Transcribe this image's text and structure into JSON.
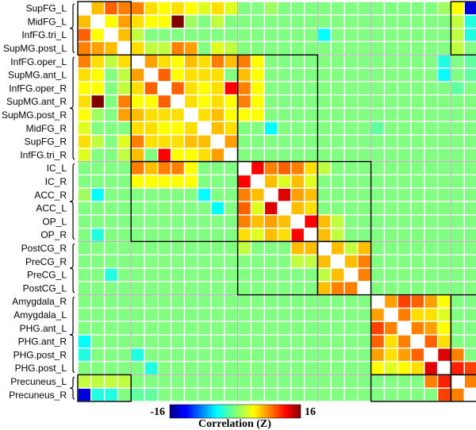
{
  "chart_data": {
    "type": "heatmap",
    "row_labels": [
      "SupFG_L",
      "MidFG_L",
      "InfFG.tri_L",
      "SupMG.post_L",
      "InfFG.oper_L",
      "SupMG.ant_L",
      "InfFG.oper_R",
      "SupMG.ant_R",
      "SupMG.post_R",
      "MidFG_R",
      "SupFG_R",
      "InfFG.tri_R",
      "IC_L",
      "IC_R",
      "ACC_R",
      "ACC_L",
      "OP_L",
      "OP_R",
      "PostCG_R",
      "PreCG_R",
      "PreCG_L",
      "PostCG_L",
      "Amygdala_R",
      "Amygdala_L",
      "PHG.ant_L",
      "PHG.ant_R",
      "PHG.post_R",
      "PHG.post_L",
      "Precuneus_L",
      "Precuneus_R"
    ],
    "colorbar": {
      "min_label": "-16",
      "max_label": "16",
      "label": "Correlation (Z)",
      "range": [
        -16,
        16
      ]
    },
    "modules": [
      {
        "start": 0,
        "end": 3
      },
      {
        "start": 4,
        "end": 11
      },
      {
        "start": 12,
        "end": 17
      },
      {
        "start": 18,
        "end": 21
      },
      {
        "start": 22,
        "end": 27
      },
      {
        "start": 28,
        "end": 29
      }
    ],
    "off_diagonal_boxes": [
      {
        "rows": [
          0,
          3
        ],
        "cols": [
          28,
          29
        ]
      },
      {
        "rows": [
          28,
          29
        ],
        "cols": [
          0,
          3
        ]
      },
      {
        "rows": [
          4,
          11
        ],
        "cols": [
          12,
          17
        ]
      },
      {
        "rows": [
          12,
          17
        ],
        "cols": [
          4,
          11
        ]
      },
      {
        "rows": [
          12,
          17
        ],
        "cols": [
          18,
          21
        ]
      },
      {
        "rows": [
          18,
          21
        ],
        "cols": [
          12,
          17
        ]
      },
      {
        "rows": [
          22,
          27
        ],
        "cols": [
          28,
          29
        ]
      },
      {
        "rows": [
          28,
          29
        ],
        "cols": [
          22,
          27
        ]
      }
    ],
    "values": [
      [
        null,
        6,
        9,
        8,
        8,
        5,
        4,
        5,
        4,
        3,
        5,
        3,
        0,
        0,
        1,
        0,
        0,
        0,
        0,
        0,
        0,
        0,
        0,
        0,
        0,
        0,
        0,
        1,
        4,
        -13
      ],
      [
        6,
        null,
        4,
        7,
        5,
        4,
        4,
        16,
        1,
        0,
        2,
        0,
        0,
        0,
        0,
        0,
        0,
        0,
        0,
        0,
        0,
        0,
        0,
        0,
        0,
        0,
        0,
        0,
        2,
        -3
      ],
      [
        9,
        4,
        null,
        6,
        2,
        0,
        0,
        0,
        0,
        0,
        0,
        0,
        0,
        0,
        0,
        0,
        0,
        0,
        -4,
        0,
        0,
        0,
        0,
        0,
        0,
        0,
        0,
        0,
        2,
        -3
      ],
      [
        8,
        7,
        6,
        null,
        5,
        2,
        2,
        8,
        7,
        0,
        3,
        2,
        0,
        0,
        0,
        0,
        0,
        0,
        0,
        0,
        0,
        0,
        0,
        0,
        0,
        0,
        0,
        0,
        2,
        0
      ],
      [
        8,
        5,
        2,
        5,
        null,
        7,
        5,
        4,
        6,
        5,
        8,
        6,
        8,
        4,
        0,
        0,
        0,
        0,
        0,
        0,
        0,
        0,
        0,
        0,
        0,
        0,
        0,
        -3,
        0,
        -1
      ],
      [
        5,
        4,
        0,
        2,
        7,
        null,
        9,
        4,
        5,
        5,
        5,
        0,
        6,
        4,
        0,
        0,
        0,
        0,
        0,
        0,
        0,
        0,
        0,
        0,
        0,
        0,
        0,
        -4,
        0,
        -1
      ],
      [
        4,
        4,
        0,
        2,
        5,
        9,
        null,
        9,
        5,
        4,
        5,
        12,
        8,
        4,
        0,
        0,
        0,
        0,
        0,
        0,
        0,
        0,
        0,
        0,
        0,
        0,
        0,
        0,
        -1,
        0
      ],
      [
        5,
        16,
        0,
        8,
        4,
        4,
        9,
        null,
        5,
        4,
        5,
        4,
        8,
        4,
        0,
        0,
        0,
        0,
        0,
        0,
        0,
        0,
        0,
        0,
        0,
        0,
        0,
        0,
        0,
        0
      ],
      [
        4,
        1,
        0,
        7,
        6,
        5,
        5,
        5,
        null,
        5,
        6,
        4,
        4,
        4,
        0,
        0,
        0,
        0,
        0,
        0,
        0,
        0,
        0,
        0,
        0,
        0,
        0,
        0,
        0,
        0
      ],
      [
        3,
        0,
        0,
        0,
        5,
        5,
        4,
        4,
        5,
        null,
        6,
        5,
        0,
        0,
        -4,
        0,
        0,
        0,
        0,
        0,
        0,
        0,
        -1,
        0,
        0,
        0,
        0,
        0,
        0,
        0
      ],
      [
        5,
        2,
        0,
        3,
        8,
        5,
        5,
        5,
        6,
        6,
        null,
        7,
        0,
        0,
        0,
        0,
        0,
        0,
        0,
        0,
        0,
        0,
        0,
        0,
        0,
        0,
        0,
        0,
        0,
        0
      ],
      [
        3,
        0,
        0,
        2,
        6,
        0,
        12,
        4,
        4,
        5,
        7,
        null,
        0,
        0,
        0,
        0,
        0,
        0,
        0,
        0,
        0,
        0,
        0,
        0,
        0,
        0,
        0,
        0,
        0,
        0
      ],
      [
        0,
        0,
        0,
        0,
        8,
        6,
        8,
        8,
        4,
        0,
        0,
        0,
        null,
        12,
        8,
        9,
        8,
        5,
        2,
        0,
        0,
        0,
        0,
        0,
        0,
        0,
        0,
        0,
        0,
        0
      ],
      [
        0,
        0,
        0,
        0,
        4,
        4,
        4,
        4,
        4,
        0,
        0,
        0,
        12,
        null,
        6,
        3,
        6,
        3,
        0,
        0,
        0,
        0,
        0,
        0,
        0,
        0,
        0,
        0,
        0,
        0
      ],
      [
        1,
        -4,
        0,
        0,
        0,
        0,
        0,
        0,
        0,
        -4,
        0,
        0,
        8,
        6,
        null,
        13,
        7,
        6,
        0,
        0,
        0,
        0,
        0,
        0,
        0,
        0,
        0,
        0,
        0,
        0
      ],
      [
        0,
        0,
        0,
        0,
        0,
        0,
        0,
        0,
        0,
        0,
        -4,
        0,
        9,
        3,
        13,
        null,
        6,
        5,
        0,
        0,
        0,
        0,
        0,
        0,
        0,
        0,
        0,
        0,
        0,
        0
      ],
      [
        0,
        0,
        0,
        0,
        0,
        0,
        0,
        0,
        0,
        0,
        0,
        0,
        8,
        6,
        7,
        6,
        null,
        12,
        6,
        2,
        0,
        0,
        0,
        0,
        0,
        0,
        0,
        0,
        0,
        0
      ],
      [
        0,
        -3,
        0,
        0,
        0,
        0,
        0,
        0,
        0,
        0,
        0,
        0,
        5,
        3,
        6,
        5,
        12,
        null,
        6,
        2,
        0,
        0,
        0,
        0,
        0,
        0,
        0,
        0,
        0,
        0
      ],
      [
        0,
        0,
        0,
        0,
        0,
        0,
        0,
        0,
        0,
        0,
        0,
        0,
        2,
        0,
        0,
        0,
        6,
        6,
        null,
        6,
        2,
        6,
        0,
        0,
        0,
        0,
        0,
        0,
        0,
        0
      ],
      [
        0,
        0,
        0,
        0,
        0,
        0,
        0,
        0,
        0,
        0,
        0,
        0,
        0,
        0,
        0,
        0,
        2,
        2,
        6,
        null,
        6,
        8,
        0,
        0,
        0,
        0,
        0,
        0,
        0,
        0
      ],
      [
        0,
        0,
        -3,
        0,
        0,
        0,
        0,
        0,
        0,
        0,
        0,
        0,
        0,
        0,
        0,
        0,
        0,
        0,
        2,
        6,
        null,
        8,
        0,
        0,
        0,
        0,
        0,
        0,
        0,
        0
      ],
      [
        0,
        0,
        0,
        0,
        0,
        0,
        0,
        0,
        0,
        0,
        0,
        0,
        0,
        0,
        0,
        0,
        0,
        0,
        6,
        8,
        8,
        null,
        0,
        0,
        0,
        0,
        0,
        0,
        0,
        0
      ],
      [
        0,
        0,
        0,
        0,
        0,
        0,
        0,
        0,
        0,
        0,
        0,
        0,
        0,
        0,
        0,
        0,
        0,
        0,
        0,
        0,
        0,
        0,
        null,
        7,
        10,
        9,
        7,
        4,
        0,
        0
      ],
      [
        0,
        0,
        0,
        0,
        0,
        0,
        0,
        0,
        0,
        0,
        0,
        0,
        0,
        0,
        0,
        0,
        0,
        0,
        0,
        0,
        0,
        0,
        7,
        null,
        8,
        5,
        5,
        3,
        0,
        0
      ],
      [
        0,
        0,
        0,
        0,
        0,
        0,
        0,
        0,
        0,
        0,
        0,
        0,
        0,
        0,
        0,
        0,
        0,
        0,
        0,
        0,
        0,
        0,
        10,
        8,
        null,
        8,
        7,
        4,
        0,
        0
      ],
      [
        -4,
        0,
        0,
        0,
        0,
        0,
        0,
        0,
        0,
        0,
        0,
        0,
        0,
        0,
        0,
        0,
        0,
        0,
        0,
        0,
        0,
        0,
        9,
        5,
        8,
        null,
        9,
        5,
        0,
        0
      ],
      [
        -3,
        0,
        0,
        0,
        -3,
        0,
        0,
        0,
        0,
        0,
        0,
        0,
        0,
        0,
        0,
        0,
        0,
        0,
        0,
        0,
        0,
        0,
        7,
        5,
        7,
        9,
        null,
        13,
        8,
        0
      ],
      [
        0,
        0,
        0,
        0,
        0,
        -3,
        0,
        0,
        0,
        0,
        0,
        0,
        0,
        0,
        0,
        0,
        0,
        0,
        0,
        0,
        0,
        0,
        4,
        3,
        4,
        5,
        13,
        null,
        11,
        10
      ],
      [
        2,
        2,
        2,
        2,
        0,
        0,
        0,
        0,
        0,
        0,
        0,
        0,
        0,
        0,
        0,
        0,
        0,
        0,
        0,
        0,
        0,
        0,
        0,
        0,
        0,
        0,
        8,
        11,
        null,
        8
      ],
      [
        -13,
        -3,
        -3,
        0,
        -1,
        -1,
        0,
        0,
        0,
        0,
        0,
        0,
        0,
        0,
        0,
        0,
        0,
        0,
        0,
        0,
        0,
        0,
        0,
        0,
        0,
        0,
        0,
        10,
        8,
        null
      ]
    ]
  }
}
